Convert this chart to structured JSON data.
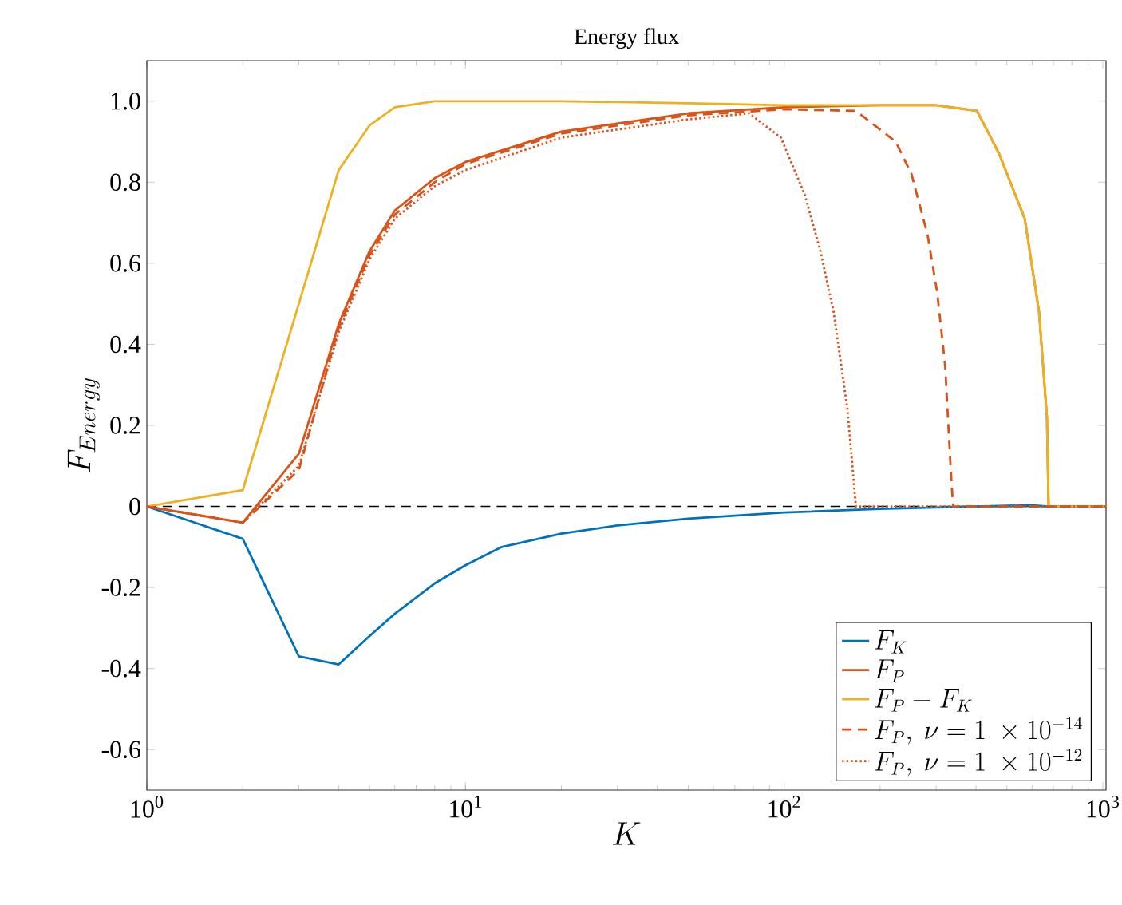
{
  "chart_data": {
    "type": "line",
    "title": "Energy flux",
    "xlabel": "K",
    "ylabel": "F_{Energy}",
    "log": "x",
    "xlim": [
      1,
      1024
    ],
    "ylim": [
      -0.7,
      1.1
    ],
    "xticks": [
      {
        "value": 1,
        "label": "10$^{0}$"
      },
      {
        "value": 10,
        "label": "10$^{1}$"
      },
      {
        "value": 100,
        "label": "10$^{2}$"
      },
      {
        "value": 1000,
        "label": "10$^{3}$"
      }
    ],
    "yticks": [
      -0.6,
      -0.4,
      -0.2,
      0,
      0.2,
      0.4,
      0.6,
      0.8,
      {
        "value": 1,
        "label": "1.0"
      }
    ],
    "grid": false,
    "legend": "bottom right",
    "marker": "none",
    "ref_lines": [
      {
        "axis": "y",
        "value": 0,
        "color": "#000000",
        "line_style": "dashed"
      }
    ],
    "series": [
      {
        "name": "F_{K}",
        "color": "#0072bd",
        "line_style": "solid",
        "x": [
          1,
          2,
          3,
          4,
          5,
          6,
          8,
          10,
          13,
          20,
          30,
          50,
          100,
          200,
          400,
          600,
          676,
          1024
        ],
        "values": [
          0,
          -0.08,
          -0.37,
          -0.39,
          -0.32,
          -0.265,
          -0.19,
          -0.145,
          -0.1,
          -0.067,
          -0.047,
          -0.03,
          -0.015,
          -0.006,
          0,
          0.003,
          0,
          0
        ]
      },
      {
        "name": "F_{P}",
        "color": "#d95319",
        "line_style": "solid",
        "x": [
          1,
          2,
          3,
          4,
          5,
          6,
          8,
          10,
          20,
          50,
          100,
          200,
          300,
          403,
          473,
          569,
          631,
          668,
          676,
          1024
        ],
        "values": [
          0,
          -0.04,
          0.13,
          0.45,
          0.63,
          0.73,
          0.81,
          0.85,
          0.925,
          0.97,
          0.985,
          0.99,
          0.99,
          0.976,
          0.87,
          0.71,
          0.48,
          0.22,
          0,
          0
        ]
      },
      {
        "name": "F_{P}-F_{K}",
        "color": "#edb120",
        "line_style": "solid",
        "x": [
          1,
          2,
          3,
          4,
          5,
          6,
          8,
          10,
          20,
          50,
          100,
          200,
          300,
          403,
          473,
          569,
          631,
          668,
          676,
          1024
        ],
        "values": [
          0,
          0.04,
          0.5,
          0.83,
          0.94,
          0.985,
          1.0,
          1.0,
          1.0,
          0.995,
          0.99,
          0.99,
          0.99,
          0.976,
          0.87,
          0.71,
          0.48,
          0.22,
          0,
          0
        ]
      },
      {
        "name": "F_{P},\\ \\nu = 1\\ \\times 10^{-14}",
        "color": "#d95319",
        "line_style": "dashed",
        "x": [
          1,
          2,
          3,
          4,
          5,
          6,
          8,
          10,
          20,
          50,
          100,
          168,
          224,
          251,
          282,
          302,
          320,
          334,
          339,
          1024
        ],
        "values": [
          0,
          -0.04,
          0.09,
          0.44,
          0.62,
          0.72,
          0.8,
          0.845,
          0.92,
          0.965,
          0.98,
          0.976,
          0.9,
          0.82,
          0.67,
          0.53,
          0.35,
          0.08,
          0,
          0
        ]
      },
      {
        "name": "F_{P},\\ \\nu = 1\\ \\times 10^{-12}",
        "color": "#d95319",
        "line_style": "dotted",
        "x": [
          1,
          2,
          3,
          4,
          5,
          6,
          8,
          10,
          20,
          50,
          77.6,
          97.7,
          116,
          130,
          143,
          158,
          168,
          1024
        ],
        "values": [
          0,
          -0.04,
          0.1,
          0.43,
          0.61,
          0.71,
          0.79,
          0.83,
          0.91,
          0.955,
          0.97,
          0.91,
          0.77,
          0.63,
          0.48,
          0.24,
          0,
          0
        ]
      }
    ]
  }
}
